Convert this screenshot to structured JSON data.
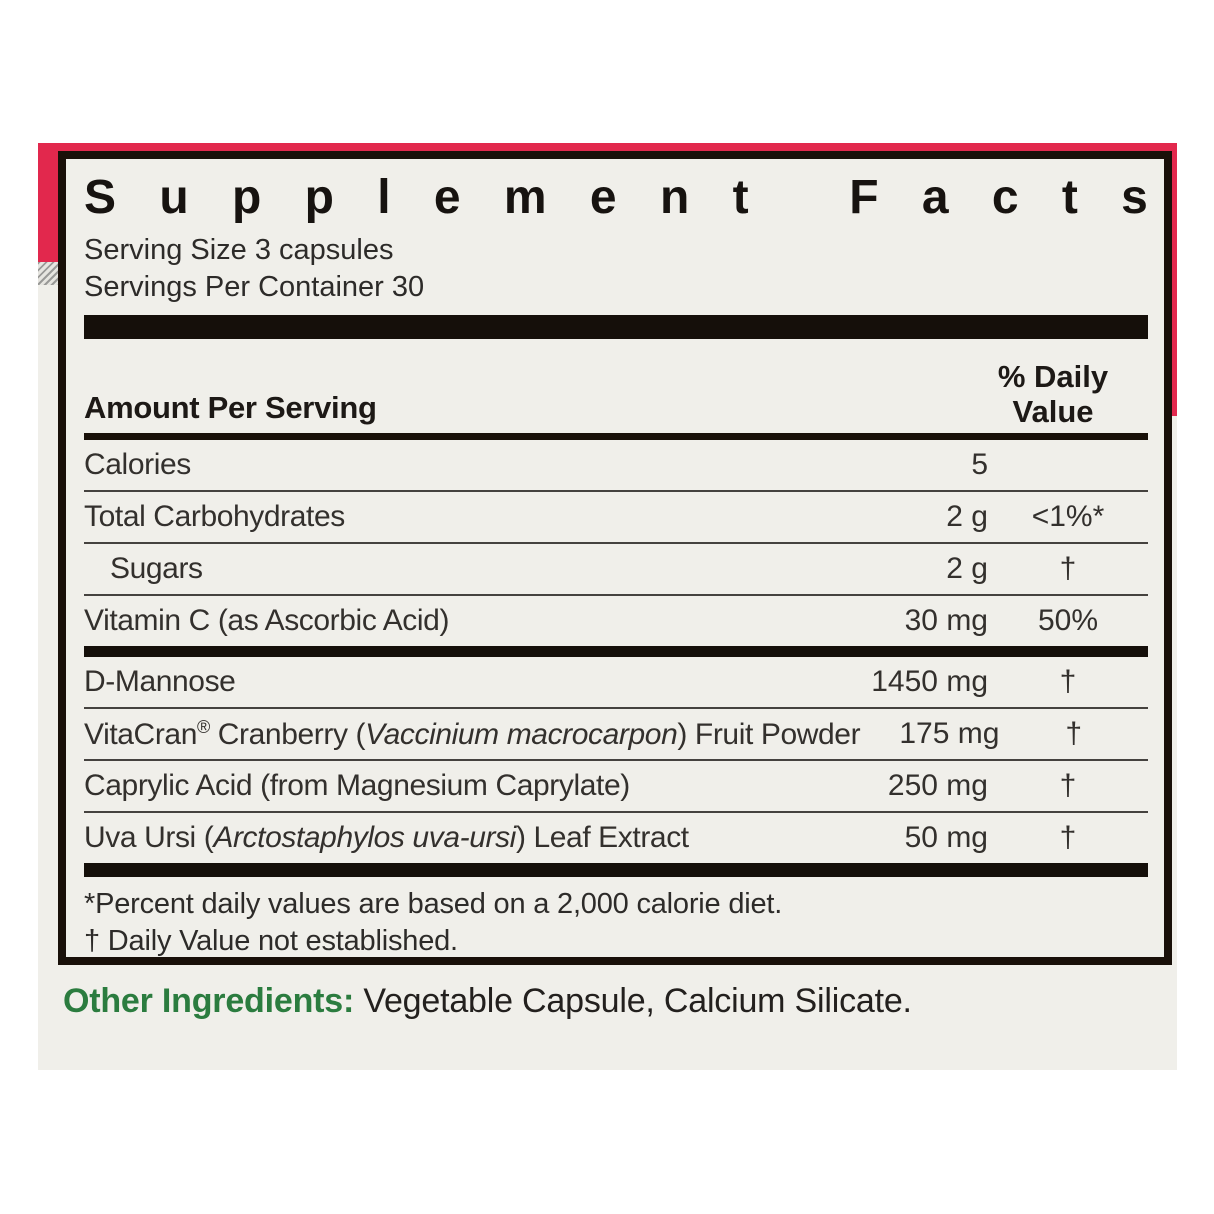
{
  "colors": {
    "accent_red": "#e2284d",
    "label_background": "#f0efea",
    "bar_black": "#150f0a",
    "green_heading": "#2b7c3f"
  },
  "panel": {
    "title": "Supplement Facts",
    "serving_size": "Serving Size 3 capsules",
    "servings_per_container": "Servings Per Container 30",
    "header": {
      "amount_label": "Amount Per Serving",
      "dv_line1": "% Daily",
      "dv_line2": "Value"
    },
    "rows": [
      {
        "name_html": "Calories",
        "amount": "5",
        "dv": "",
        "indent": false,
        "rule": "thin"
      },
      {
        "name_html": "Total Carbohydrates",
        "amount": "2 g",
        "dv": "<1%*",
        "indent": false,
        "rule": "thin"
      },
      {
        "name_html": "Sugars",
        "amount": "2 g",
        "dv": "†",
        "indent": true,
        "rule": "thin"
      },
      {
        "name_html": "Vitamin C (as Ascorbic Acid)",
        "amount": "30 mg",
        "dv": "50%",
        "indent": false,
        "rule": "thick"
      },
      {
        "name_html": "D-Mannose",
        "amount": "1450 mg",
        "dv": "†",
        "indent": false,
        "rule": "thin"
      },
      {
        "name_html": "VitaCran<sup>®</sup> Cranberry (<i>Vaccinium macrocarpon</i>) Fruit Powder",
        "amount": "175 mg",
        "dv": "†",
        "indent": false,
        "rule": "thin"
      },
      {
        "name_html": "Caprylic Acid (from Magnesium Caprylate)",
        "amount": "250 mg",
        "dv": "†",
        "indent": false,
        "rule": "thin"
      },
      {
        "name_html": "Uva Ursi (<i>Arctostaphylos uva-ursi</i>) Leaf Extract",
        "amount": "50 mg",
        "dv": "†",
        "indent": false,
        "rule": "thick",
        "final": true
      }
    ],
    "footnotes": [
      "*Percent daily values are based on a 2,000 calorie diet.",
      "† Daily Value not established."
    ]
  },
  "other_ingredients": {
    "label": "Other Ingredients:",
    "text": " Vegetable Capsule, Calcium Silicate."
  }
}
